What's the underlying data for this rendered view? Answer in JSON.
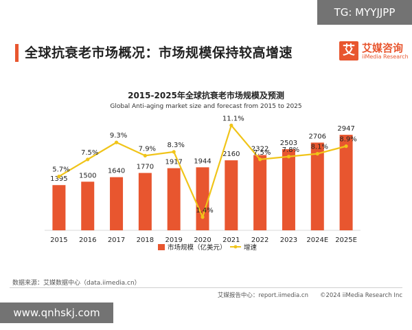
{
  "header": {
    "title": "全球抗衰老市场概况：市场规模保持较高增速",
    "brand_cn": "艾媒咨询",
    "brand_en": "iiMedia Research",
    "brand_mark": "艾"
  },
  "watermarks": {
    "top_right": "TG: MYYJJPP",
    "bottom_left": "www.qnhskj.com"
  },
  "footer": {
    "source": "数据来源：艾媒数据中心（data.iimedia.cn）",
    "right": "艾媒报告中心：report.iimedia.cn　　©2024  iiMedia Research  Inc"
  },
  "colors": {
    "accent": "#e8562f",
    "bar": "#e8562f",
    "line": "#f0c419"
  },
  "chart_data": {
    "type": "bar",
    "title": "2015-2025年全球抗衰老市场规模及预测",
    "subtitle": "Global Anti-aging market size and forecast from 2015 to 2025",
    "categories": [
      "2015",
      "2016",
      "2017",
      "2018",
      "2019",
      "2020",
      "2021",
      "2022",
      "2023",
      "2024E",
      "2025E"
    ],
    "series": [
      {
        "name": "市场规模（亿美元）",
        "type": "bar",
        "values": [
          1395,
          1500,
          1640,
          1770,
          1917,
          1944,
          2160,
          2322,
          2503,
          2706,
          2947
        ],
        "labels": [
          "1395",
          "1500",
          "1640",
          "1770",
          "1917",
          "1944",
          "2160",
          "2322",
          "2503",
          "2706",
          "2947"
        ]
      },
      {
        "name": "增速",
        "type": "line",
        "values": [
          5.7,
          7.5,
          9.3,
          7.9,
          8.3,
          1.4,
          11.1,
          7.5,
          7.8,
          8.1,
          8.9
        ],
        "labels": [
          "5.7%",
          "7.5%",
          "9.3%",
          "7.9%",
          "8.3%",
          "1.4%",
          "11.1%",
          "7.5%",
          "7.8%",
          "8.1%",
          "8.9%"
        ]
      }
    ],
    "ylim": [
      0,
      3500
    ],
    "y2lim": [
      0,
      12
    ],
    "legend_position": "bottom",
    "grid": false
  }
}
